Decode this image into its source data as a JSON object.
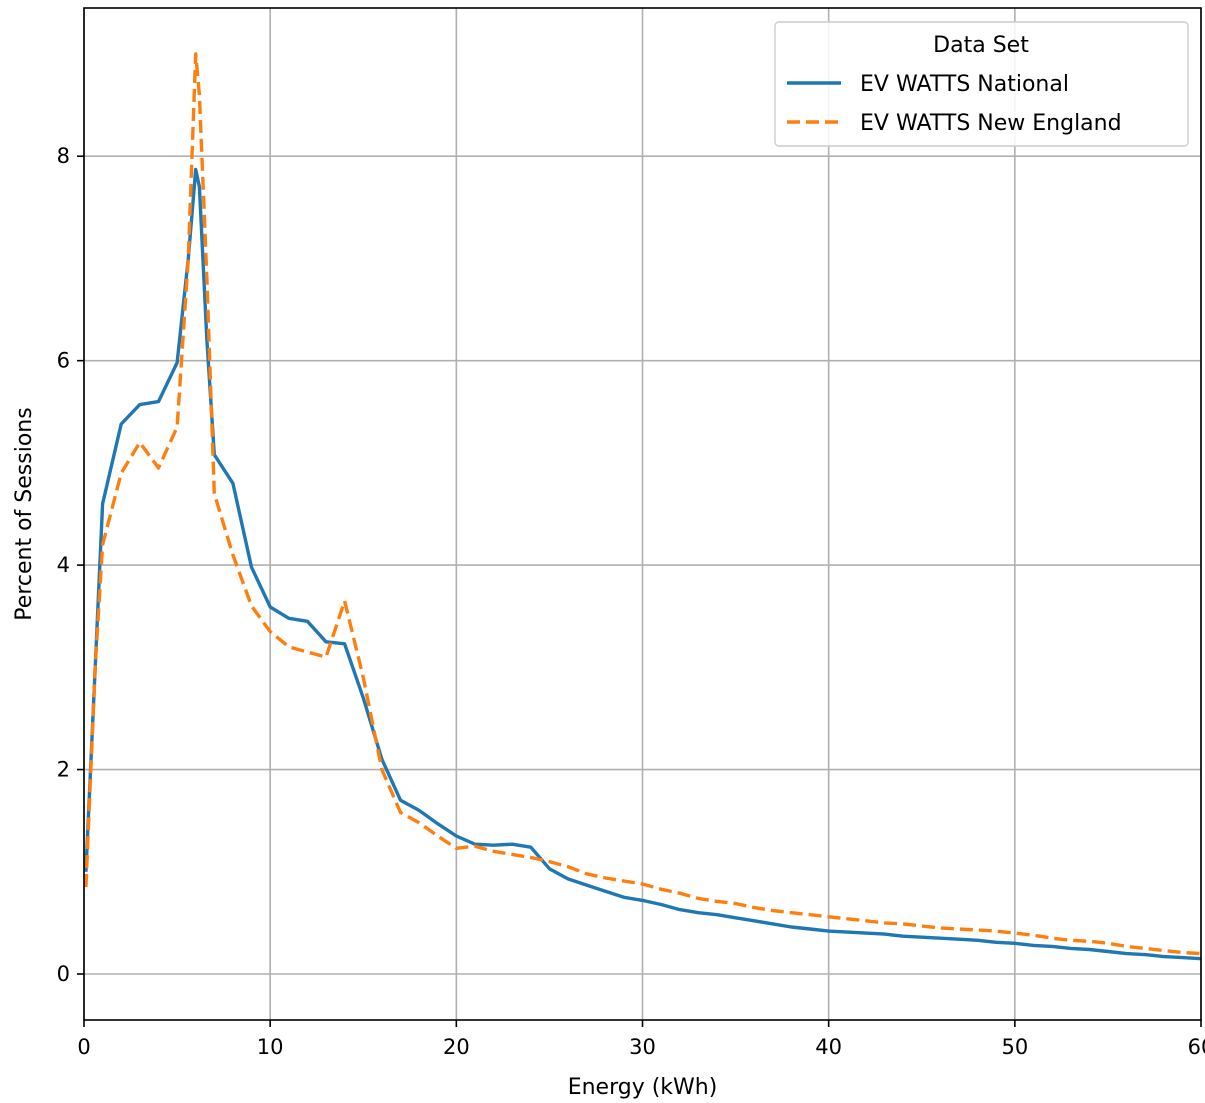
{
  "chart_data": {
    "type": "line",
    "title": "",
    "xlabel": "Energy (kWh)",
    "ylabel": "Percent of Sessions",
    "xlim": [
      0,
      60
    ],
    "ylim": [
      -0.45,
      9.45
    ],
    "xticks": [
      0,
      10,
      20,
      30,
      40,
      50,
      60
    ],
    "yticks": [
      0,
      2,
      4,
      6,
      8
    ],
    "grid": true,
    "legend": {
      "title": "Data Set",
      "position": "top-right"
    },
    "series": [
      {
        "name": "EV WATTS National",
        "color": "#1f77b4",
        "style": "solid",
        "x": [
          0.1,
          0.6,
          1.0,
          2.0,
          3.0,
          4.0,
          5.0,
          5.6,
          6.0,
          6.2,
          6.6,
          7.0,
          8.0,
          9.0,
          10.0,
          11.0,
          12.0,
          13.0,
          14.0,
          15.0,
          16.0,
          17.0,
          18.0,
          19.0,
          20.0,
          21.0,
          22.0,
          23.0,
          24.0,
          25.0,
          26.0,
          27.0,
          28.0,
          29.0,
          30.0,
          31.0,
          32.0,
          33.0,
          34.0,
          35.0,
          36.0,
          37.0,
          38.0,
          39.0,
          40.0,
          41.0,
          42.0,
          43.0,
          44.0,
          45.0,
          46.0,
          47.0,
          48.0,
          49.0,
          50.0,
          51.0,
          52.0,
          53.0,
          54.0,
          55.0,
          56.0,
          57.0,
          58.0,
          59.0,
          60.0
        ],
        "y": [
          1.0,
          3.0,
          4.6,
          5.38,
          5.57,
          5.6,
          5.98,
          7.0,
          7.87,
          7.7,
          6.2,
          5.08,
          4.8,
          3.98,
          3.59,
          3.48,
          3.45,
          3.25,
          3.23,
          2.7,
          2.1,
          1.7,
          1.6,
          1.47,
          1.35,
          1.27,
          1.26,
          1.27,
          1.24,
          1.03,
          0.93,
          0.87,
          0.81,
          0.75,
          0.72,
          0.68,
          0.63,
          0.6,
          0.58,
          0.55,
          0.52,
          0.49,
          0.46,
          0.44,
          0.42,
          0.41,
          0.4,
          0.39,
          0.37,
          0.36,
          0.35,
          0.34,
          0.33,
          0.31,
          0.3,
          0.28,
          0.27,
          0.25,
          0.24,
          0.22,
          0.2,
          0.19,
          0.17,
          0.16,
          0.15
        ]
      },
      {
        "name": "EV WATTS New England",
        "color": "#ff7f0e",
        "style": "dashed",
        "x": [
          0.1,
          0.6,
          1.0,
          2.0,
          3.0,
          4.0,
          5.0,
          5.6,
          6.0,
          6.2,
          6.6,
          7.0,
          8.0,
          9.0,
          10.0,
          11.0,
          12.0,
          13.0,
          14.0,
          15.0,
          16.0,
          17.0,
          18.0,
          19.0,
          20.0,
          21.0,
          22.0,
          23.0,
          24.0,
          25.0,
          26.0,
          27.0,
          28.0,
          29.0,
          30.0,
          31.0,
          32.0,
          33.0,
          34.0,
          35.0,
          36.0,
          37.0,
          38.0,
          39.0,
          40.0,
          41.0,
          42.0,
          43.0,
          44.0,
          45.0,
          46.0,
          47.0,
          48.0,
          49.0,
          50.0,
          51.0,
          52.0,
          53.0,
          54.0,
          55.0,
          56.0,
          57.0,
          58.0,
          59.0,
          60.0
        ],
        "y": [
          0.85,
          3.0,
          4.2,
          4.9,
          5.2,
          4.95,
          5.35,
          7.0,
          9.0,
          8.6,
          6.8,
          4.7,
          4.1,
          3.6,
          3.35,
          3.2,
          3.15,
          3.1,
          3.65,
          2.9,
          2.0,
          1.58,
          1.48,
          1.35,
          1.23,
          1.25,
          1.2,
          1.17,
          1.14,
          1.1,
          1.05,
          0.98,
          0.94,
          0.91,
          0.88,
          0.83,
          0.79,
          0.74,
          0.71,
          0.69,
          0.65,
          0.62,
          0.6,
          0.58,
          0.56,
          0.54,
          0.52,
          0.5,
          0.49,
          0.47,
          0.45,
          0.44,
          0.43,
          0.42,
          0.4,
          0.38,
          0.35,
          0.33,
          0.32,
          0.3,
          0.27,
          0.25,
          0.23,
          0.21,
          0.2
        ]
      }
    ]
  }
}
